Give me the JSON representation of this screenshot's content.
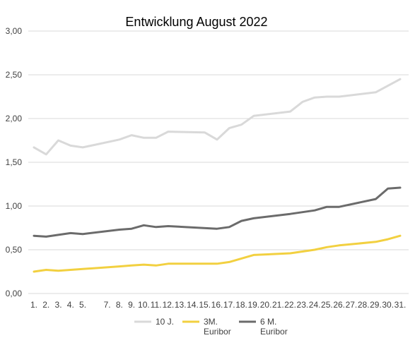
{
  "chart_data": {
    "type": "line",
    "title": "Entwicklung August 2022",
    "xlabel": "",
    "ylabel": "",
    "ylim": [
      0,
      3
    ],
    "y_ticks": [
      "0,00",
      "0,50",
      "1,00",
      "1,50",
      "2,00",
      "2,50",
      "3,00"
    ],
    "grid": "horizontal",
    "legend_position": "bottom",
    "x": [
      "1.",
      "2.",
      "3.",
      "4.",
      "5.",
      "7.",
      "8.",
      "9.",
      "10.",
      "11.",
      "12.",
      "13.",
      "14.",
      "15.",
      "16.",
      "17.",
      "18.",
      "19.",
      "20.",
      "21.",
      "22.",
      "23.",
      "24.",
      "25.",
      "26.",
      "27.",
      "28.",
      "29.",
      "30.",
      "31."
    ],
    "x_positions": [
      1,
      2,
      3,
      4,
      5,
      7,
      8,
      9,
      10,
      11,
      12,
      13,
      14,
      15,
      16,
      17,
      18,
      19,
      20,
      21,
      22,
      23,
      24,
      25,
      26,
      27,
      28,
      29,
      30,
      31
    ],
    "series": [
      {
        "name": "10 J.",
        "color": "#d9d9d9",
        "x": [
          1,
          2,
          3,
          4,
          5,
          8,
          9,
          10,
          11,
          12,
          15,
          16,
          17,
          18,
          19,
          22,
          23,
          24,
          25,
          26,
          29,
          31
        ],
        "values": [
          1.67,
          1.59,
          1.75,
          1.69,
          1.67,
          1.76,
          1.81,
          1.78,
          1.78,
          1.85,
          1.84,
          1.76,
          1.89,
          1.93,
          2.03,
          2.08,
          2.19,
          2.24,
          2.25,
          2.25,
          2.3,
          2.45
        ]
      },
      {
        "name": "3M. Euribor",
        "color": "#f2d040",
        "x": [
          1,
          2,
          3,
          4,
          5,
          8,
          9,
          10,
          11,
          12,
          15,
          16,
          17,
          18,
          19,
          22,
          23,
          24,
          25,
          26,
          29,
          30,
          31
        ],
        "values": [
          0.25,
          0.27,
          0.26,
          0.27,
          0.28,
          0.31,
          0.32,
          0.33,
          0.32,
          0.34,
          0.34,
          0.34,
          0.36,
          0.4,
          0.44,
          0.46,
          0.48,
          0.5,
          0.53,
          0.55,
          0.59,
          0.62,
          0.66
        ]
      },
      {
        "name": "6 M. Euribor",
        "color": "#6b6b6b",
        "x": [
          1,
          2,
          3,
          4,
          5,
          8,
          9,
          10,
          11,
          12,
          16,
          17,
          18,
          19,
          22,
          23,
          24,
          25,
          26,
          29,
          30,
          31
        ],
        "values": [
          0.66,
          0.65,
          0.67,
          0.69,
          0.68,
          0.73,
          0.74,
          0.78,
          0.76,
          0.77,
          0.74,
          0.76,
          0.83,
          0.86,
          0.91,
          0.93,
          0.95,
          0.99,
          0.99,
          1.08,
          1.2,
          1.21
        ]
      }
    ],
    "legend": [
      {
        "label_line1": "10 J.",
        "label_line2": ""
      },
      {
        "label_line1": "3M.",
        "label_line2": "Euribor"
      },
      {
        "label_line1": "6 M.",
        "label_line2": "Euribor"
      }
    ]
  }
}
